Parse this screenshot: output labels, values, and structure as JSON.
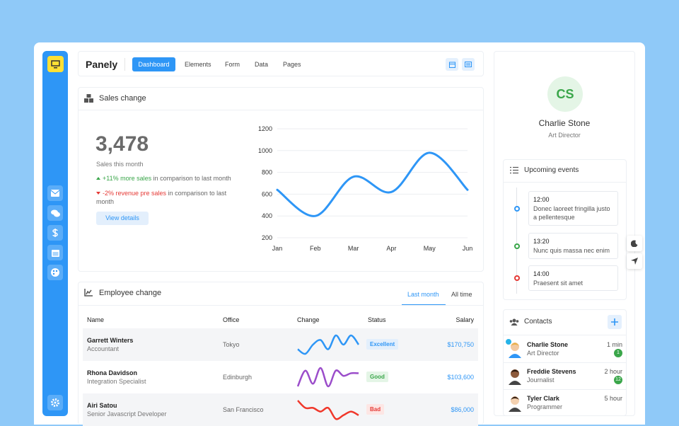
{
  "header": {
    "brand": "Panely",
    "nav": [
      "Dashboard",
      "Elements",
      "Form",
      "Data",
      "Pages"
    ]
  },
  "sales": {
    "title": "Sales change",
    "total": "3,478",
    "caption": "Sales this month",
    "up": {
      "highlight": "+11% more sales",
      "rest": " in comparison to last month"
    },
    "down": {
      "highlight": "-2% revenue pre sales",
      "rest": " in comparison to last month"
    },
    "button": "View details"
  },
  "chart_data": {
    "type": "line",
    "categories": [
      "Jan",
      "Feb",
      "Mar",
      "Apr",
      "May",
      "Jun"
    ],
    "values": [
      640,
      400,
      760,
      620,
      980,
      640
    ],
    "color": "#2e96f6",
    "ylim": [
      200,
      1200
    ],
    "yticks": [
      200,
      400,
      600,
      800,
      1000,
      1200
    ],
    "grid": true
  },
  "employees": {
    "title": "Employee change",
    "tabs": [
      "Last month",
      "All time"
    ],
    "columns": [
      "Name",
      "Office",
      "Change",
      "Status",
      "Salary"
    ],
    "rows": [
      {
        "name": "Garrett Winters",
        "role": "Accountant",
        "office": "Tokyo",
        "change": [
          4,
          3,
          5,
          6,
          4,
          7,
          5,
          7,
          5
        ],
        "status": "Excellent",
        "salary": "$170,750"
      },
      {
        "name": "Rhona Davidson",
        "role": "Integration Specialist",
        "office": "Edinburgh",
        "change": [
          2,
          8,
          3,
          9,
          2,
          8,
          6,
          7,
          7
        ],
        "status": "Good",
        "salary": "$103,600"
      },
      {
        "name": "Airi Satou",
        "role": "Senior Javascript Developer",
        "office": "San Francisco",
        "change": [
          8,
          6,
          6,
          5,
          6,
          3,
          4,
          5,
          4
        ],
        "status": "Bad",
        "salary": "$86,000"
      }
    ]
  },
  "profile": {
    "initials": "CS",
    "name": "Charlie Stone",
    "role": "Art Director"
  },
  "events": {
    "title": "Upcoming events",
    "items": [
      {
        "time": "12:00",
        "text": "Donec laoreet fringilla justo a pellentesque"
      },
      {
        "time": "13:20",
        "text": "Nunc quis massa nec enim"
      },
      {
        "time": "14:00",
        "text": "Praesent sit amet"
      }
    ]
  },
  "contacts": {
    "title": "Contacts",
    "items": [
      {
        "name": "Charlie Stone",
        "role": "Art Director",
        "time": "1 min",
        "count": "1"
      },
      {
        "name": "Freddie Stevens",
        "role": "Journalist",
        "time": "2 hour",
        "count": "12"
      },
      {
        "name": "Tyler Clark",
        "role": "Programmer",
        "time": "5 hour"
      }
    ]
  }
}
